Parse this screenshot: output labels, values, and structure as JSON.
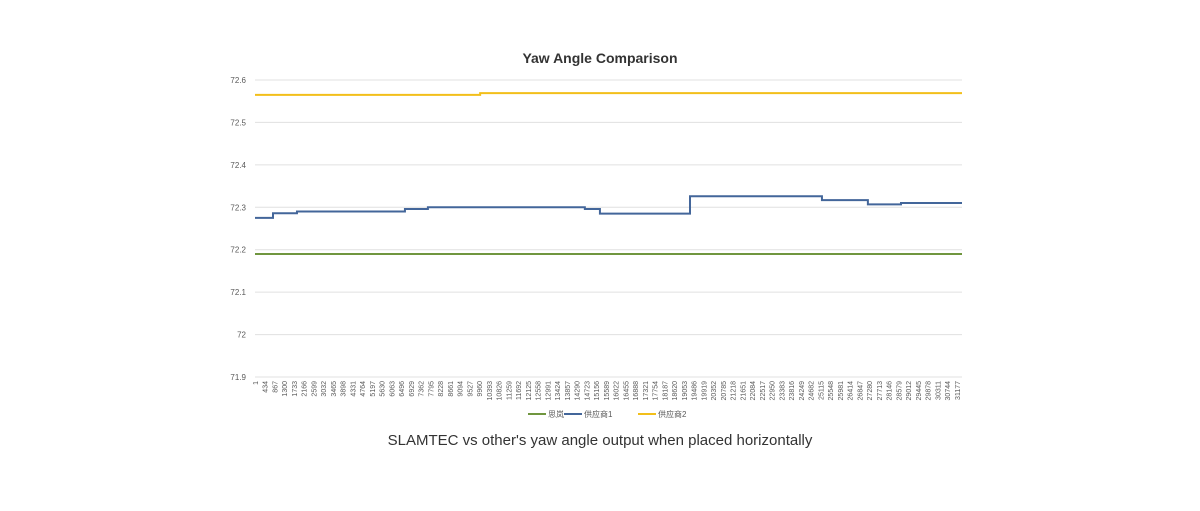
{
  "chart_data": {
    "type": "line",
    "title": "Yaw Angle Comparison",
    "xlabel": "",
    "ylabel": "",
    "ylim": [
      71.9,
      72.6
    ],
    "yticks": [
      "72.6",
      "72.5",
      "72.4",
      "72.3",
      "72.2",
      "72.1",
      "72",
      "71.9"
    ],
    "xlim": [
      1,
      31400
    ],
    "xticks": [
      1,
      434,
      867,
      1300,
      1733,
      2166,
      2599,
      3032,
      3465,
      3898,
      4331,
      4764,
      5197,
      5630,
      6063,
      6496,
      6929,
      7362,
      7795,
      8228,
      8661,
      9094,
      9527,
      9960,
      10393,
      10826,
      11259,
      11692,
      12125,
      12558,
      12991,
      13424,
      13857,
      14290,
      14723,
      15156,
      15589,
      16022,
      16455,
      16888,
      17321,
      17754,
      18187,
      18620,
      19053,
      19486,
      19919,
      20352,
      20785,
      21218,
      21651,
      22084,
      22517,
      22950,
      23383,
      23816,
      24249,
      24682,
      25115,
      25548,
      25981,
      26414,
      26847,
      27280,
      27713,
      28146,
      28579,
      29012,
      29445,
      29878,
      30311,
      30744,
      31177
    ],
    "grid": true,
    "legend_position": "bottom",
    "series": [
      {
        "name": "思岚",
        "color": "#70963f",
        "steps": [
          [
            1,
            72.19
          ],
          [
            31400,
            72.19
          ]
        ]
      },
      {
        "name": "供应商1",
        "color": "#43669a",
        "steps": [
          [
            1,
            72.275
          ],
          [
            800,
            72.286
          ],
          [
            1865,
            72.29
          ],
          [
            6660,
            72.296
          ],
          [
            7680,
            72.3
          ],
          [
            14650,
            72.296
          ],
          [
            15320,
            72.285
          ],
          [
            19320,
            72.326
          ],
          [
            25180,
            72.317
          ],
          [
            27220,
            72.307
          ],
          [
            28690,
            72.31
          ],
          [
            31400,
            72.31
          ]
        ]
      },
      {
        "name": "供应商2",
        "color": "#f2bf1a",
        "steps": [
          [
            1,
            72.565
          ],
          [
            10000,
            72.569
          ],
          [
            31400,
            72.569
          ]
        ]
      }
    ]
  },
  "caption": "SLAMTEC vs other's yaw angle output when placed horizontally"
}
